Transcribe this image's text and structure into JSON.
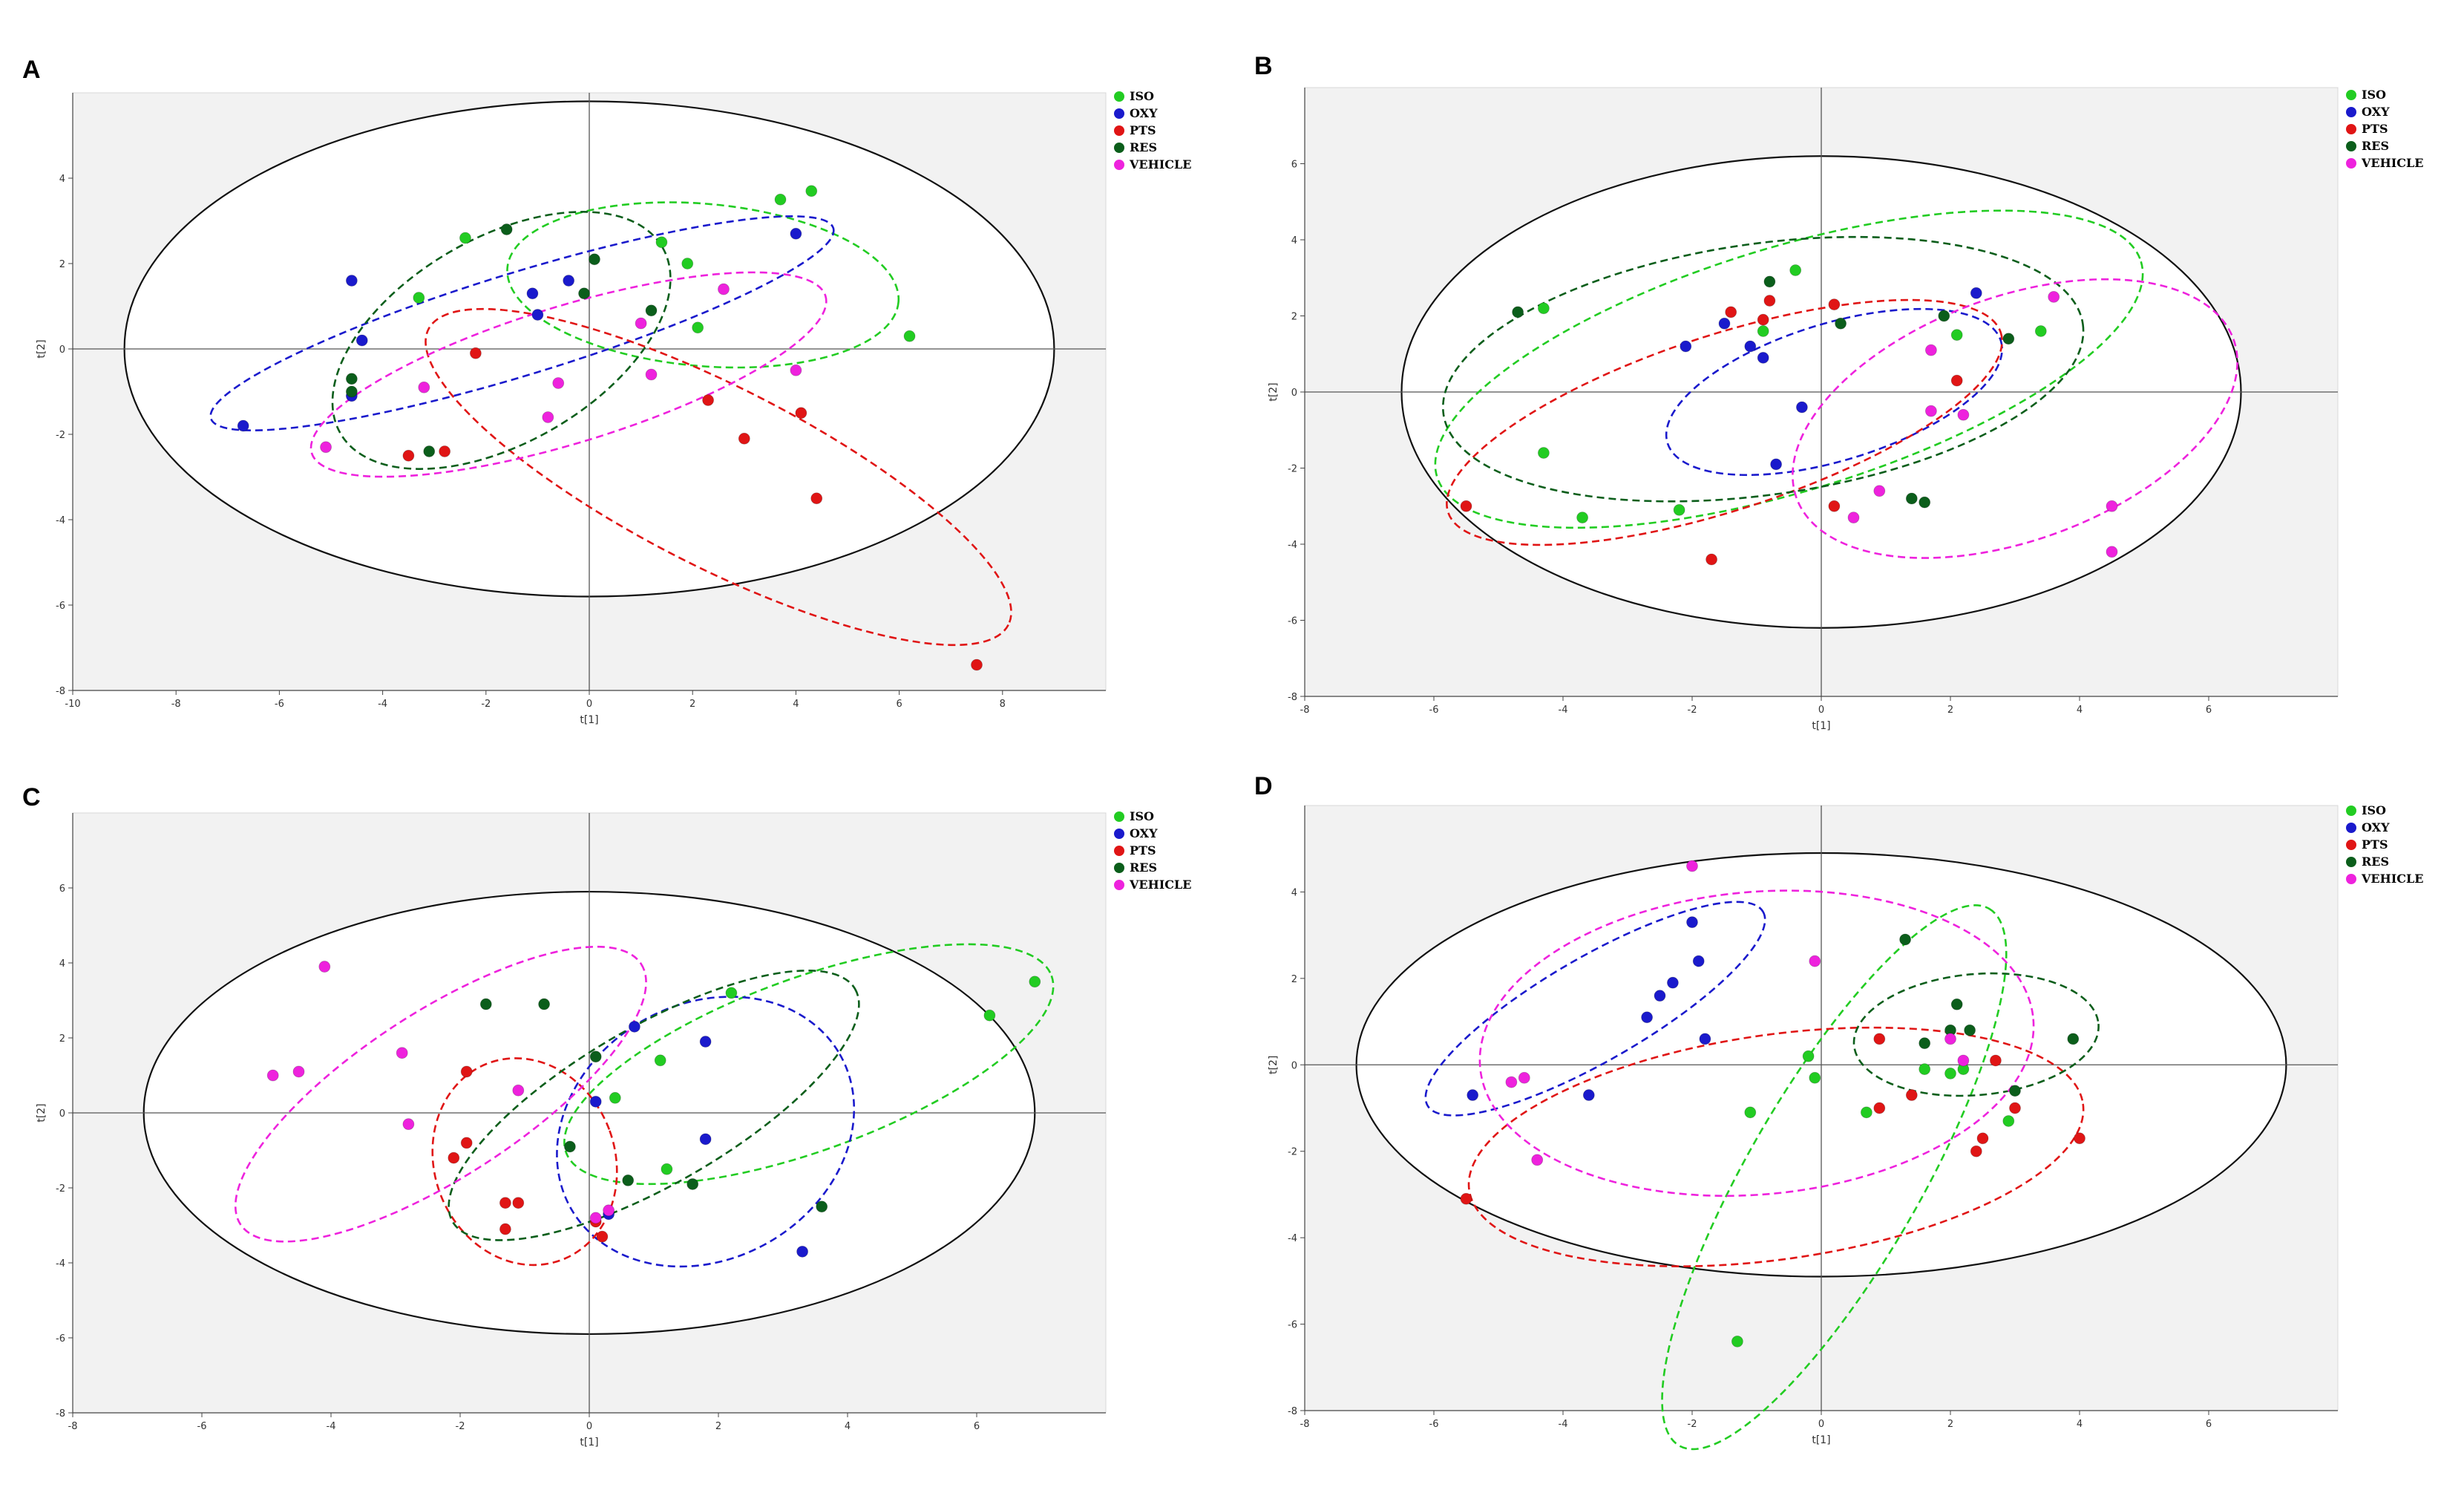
{
  "figure": {
    "legend": [
      {
        "name": "ISO",
        "color": "#22cc22"
      },
      {
        "name": "OXY",
        "color": "#1a1acc"
      },
      {
        "name": "PTS",
        "color": "#e01515"
      },
      {
        "name": "RES",
        "color": "#0b5e1b"
      },
      {
        "name": "VEHICLE",
        "color": "#ee22dd"
      }
    ]
  },
  "chart_data": [
    {
      "type": "scatter",
      "panel_label": "A",
      "xlabel": "t[1]",
      "ylabel": "t[2]",
      "xlim": [
        -10,
        10
      ],
      "ylim": [
        -8,
        6
      ],
      "xticks": [
        "-10",
        "-8",
        "-6",
        "-4",
        "-2",
        "0",
        "2",
        "4",
        "6",
        "8"
      ],
      "yticks": [
        "-8",
        "-6",
        "-4",
        "-2",
        "0",
        "2",
        "4"
      ],
      "hotelling_ellipse": {
        "cx": 0,
        "cy": 0,
        "rx": 9,
        "ry": 5.8
      },
      "series": [
        {
          "name": "ISO",
          "points": [
            [
              -3.3,
              1.2
            ],
            [
              -2.4,
              2.6
            ],
            [
              1.4,
              2.5
            ],
            [
              1.9,
              2.0
            ],
            [
              2.1,
              0.5
            ],
            [
              3.7,
              3.5
            ],
            [
              4.3,
              3.7
            ],
            [
              6.2,
              0.3
            ]
          ],
          "ellipse": {
            "cx": 2.2,
            "cy": 1.5,
            "rx": 3.8,
            "ry": 1.9,
            "angle": -5
          }
        },
        {
          "name": "OXY",
          "points": [
            [
              -6.7,
              -1.8
            ],
            [
              -4.6,
              1.6
            ],
            [
              -4.4,
              0.2
            ],
            [
              -4.6,
              -1.1
            ],
            [
              -1.1,
              1.3
            ],
            [
              -1.0,
              0.8
            ],
            [
              -0.4,
              1.6
            ],
            [
              4.0,
              2.7
            ]
          ],
          "ellipse": {
            "cx": -1.3,
            "cy": 0.6,
            "rx": 6.3,
            "ry": 1.2,
            "angle": 17
          }
        },
        {
          "name": "PTS",
          "points": [
            [
              -2.2,
              -0.1
            ],
            [
              -3.5,
              -2.5
            ],
            [
              -2.8,
              -2.4
            ],
            [
              2.3,
              -1.2
            ],
            [
              3.0,
              -2.1
            ],
            [
              4.1,
              -1.5
            ],
            [
              4.4,
              -3.5
            ],
            [
              7.5,
              -7.4
            ]
          ],
          "ellipse": {
            "cx": 2.5,
            "cy": -3.0,
            "rx": 6.3,
            "ry": 2.1,
            "angle": -27
          }
        },
        {
          "name": "RES",
          "points": [
            [
              -4.6,
              -0.7
            ],
            [
              -3.1,
              -2.4
            ],
            [
              -1.6,
              2.8
            ],
            [
              0.1,
              2.1
            ],
            [
              -0.1,
              1.3
            ],
            [
              1.2,
              0.9
            ],
            [
              -4.6,
              -1.0
            ]
          ],
          "ellipse": {
            "cx": -1.7,
            "cy": 0.2,
            "rx": 3.6,
            "ry": 2.4,
            "angle": 30
          }
        },
        {
          "name": "VEHICLE",
          "points": [
            [
              -5.1,
              -2.3
            ],
            [
              -3.2,
              -0.9
            ],
            [
              -0.6,
              -0.8
            ],
            [
              -0.8,
              -1.6
            ],
            [
              1.2,
              -0.6
            ],
            [
              1.0,
              0.6
            ],
            [
              2.6,
              1.4
            ],
            [
              4.0,
              -0.5
            ]
          ],
          "ellipse": {
            "cx": -0.4,
            "cy": -0.6,
            "rx": 5.2,
            "ry": 1.6,
            "angle": 17
          }
        }
      ]
    },
    {
      "type": "scatter",
      "panel_label": "B",
      "xlabel": "t[1]",
      "ylabel": "t[2]",
      "xlim": [
        -8,
        8
      ],
      "ylim": [
        -8,
        8
      ],
      "xticks": [
        "-8",
        "-6",
        "-4",
        "-2",
        "0",
        "2",
        "4",
        "6"
      ],
      "yticks": [
        "-8",
        "-6",
        "-4",
        "-2",
        "0",
        "2",
        "4",
        "6"
      ],
      "hotelling_ellipse": {
        "cx": 0,
        "cy": 0,
        "rx": 6.5,
        "ry": 6.2
      },
      "series": [
        {
          "name": "ISO",
          "points": [
            [
              -4.3,
              2.2
            ],
            [
              -4.3,
              -1.6
            ],
            [
              -3.7,
              -3.3
            ],
            [
              -2.2,
              -3.1
            ],
            [
              -0.9,
              1.6
            ],
            [
              -0.4,
              3.2
            ],
            [
              2.1,
              1.5
            ],
            [
              3.4,
              1.6
            ]
          ],
          "ellipse": {
            "cx": -0.5,
            "cy": 0.6,
            "rx": 5.7,
            "ry": 3.2,
            "angle": 17
          }
        },
        {
          "name": "OXY",
          "points": [
            [
              -2.1,
              1.2
            ],
            [
              -1.1,
              1.2
            ],
            [
              -1.5,
              1.8
            ],
            [
              -0.9,
              0.9
            ],
            [
              -0.3,
              -0.4
            ],
            [
              -0.7,
              -1.9
            ],
            [
              2.4,
              2.6
            ]
          ],
          "ellipse": {
            "cx": 0.2,
            "cy": 0.0,
            "rx": 2.7,
            "ry": 1.8,
            "angle": 17
          }
        },
        {
          "name": "PTS",
          "points": [
            [
              -5.5,
              -3.0
            ],
            [
              -1.7,
              -4.4
            ],
            [
              -1.4,
              2.1
            ],
            [
              -0.9,
              1.9
            ],
            [
              -0.8,
              2.4
            ],
            [
              0.2,
              2.3
            ],
            [
              0.2,
              -3.0
            ],
            [
              2.1,
              0.3
            ]
          ],
          "ellipse": {
            "cx": -1.5,
            "cy": -0.8,
            "rx": 4.5,
            "ry": 2.3,
            "angle": 18
          }
        },
        {
          "name": "RES",
          "points": [
            [
              -4.7,
              2.1
            ],
            [
              -0.8,
              2.9
            ],
            [
              0.3,
              1.8
            ],
            [
              1.4,
              -2.8
            ],
            [
              1.6,
              -2.9
            ],
            [
              1.9,
              2.0
            ],
            [
              2.9,
              1.4
            ]
          ],
          "ellipse": {
            "cx": -0.9,
            "cy": 0.6,
            "rx": 5.0,
            "ry": 3.3,
            "angle": 8
          }
        },
        {
          "name": "VEHICLE",
          "points": [
            [
              0.5,
              -3.3
            ],
            [
              0.9,
              -2.6
            ],
            [
              1.7,
              1.1
            ],
            [
              1.7,
              -0.5
            ],
            [
              2.2,
              -0.6
            ],
            [
              3.6,
              2.5
            ],
            [
              4.5,
              -3.0
            ],
            [
              4.5,
              -4.2
            ]
          ],
          "ellipse": {
            "cx": 3.0,
            "cy": -0.7,
            "rx": 3.6,
            "ry": 3.2,
            "angle": 20
          }
        }
      ]
    },
    {
      "type": "scatter",
      "panel_label": "C",
      "xlabel": "t[1]",
      "ylabel": "t[2]",
      "xlim": [
        -8,
        8
      ],
      "ylim": [
        -8,
        8
      ],
      "xticks": [
        "-8",
        "-6",
        "-4",
        "-2",
        "0",
        "2",
        "4",
        "6"
      ],
      "yticks": [
        "-8",
        "-6",
        "-4",
        "-2",
        "0",
        "2",
        "4",
        "6"
      ],
      "hotelling_ellipse": {
        "cx": 0,
        "cy": 0,
        "rx": 6.9,
        "ry": 5.9
      },
      "series": [
        {
          "name": "ISO",
          "points": [
            [
              0.4,
              0.4
            ],
            [
              1.1,
              1.4
            ],
            [
              1.2,
              -1.5
            ],
            [
              2.2,
              3.2
            ],
            [
              6.2,
              2.6
            ],
            [
              6.9,
              3.5
            ]
          ],
          "ellipse": {
            "cx": 3.4,
            "cy": 1.3,
            "rx": 4.0,
            "ry": 2.3,
            "angle": 20
          }
        },
        {
          "name": "OXY",
          "points": [
            [
              0.1,
              0.3
            ],
            [
              0.7,
              2.3
            ],
            [
              1.8,
              1.9
            ],
            [
              1.8,
              -0.7
            ],
            [
              3.3,
              -3.7
            ],
            [
              0.3,
              -2.7
            ]
          ],
          "ellipse": {
            "cx": 1.8,
            "cy": -0.5,
            "rx": 2.4,
            "ry": 3.4,
            "angle": 30
          }
        },
        {
          "name": "PTS",
          "points": [
            [
              -2.1,
              -1.2
            ],
            [
              -1.9,
              1.1
            ],
            [
              -1.9,
              -0.8
            ],
            [
              -1.3,
              -2.4
            ],
            [
              -1.1,
              -2.4
            ],
            [
              -1.3,
              -3.1
            ],
            [
              0.1,
              -2.9
            ],
            [
              0.2,
              -3.3
            ]
          ],
          "ellipse": {
            "cx": -1.0,
            "cy": -1.3,
            "rx": 1.4,
            "ry": 2.8,
            "angle": 20
          }
        },
        {
          "name": "RES",
          "points": [
            [
              -1.6,
              2.9
            ],
            [
              -0.7,
              2.9
            ],
            [
              0.1,
              1.5
            ],
            [
              -0.3,
              -0.9
            ],
            [
              0.6,
              -1.8
            ],
            [
              1.6,
              -1.9
            ],
            [
              3.6,
              -2.5
            ]
          ],
          "ellipse": {
            "cx": 1.0,
            "cy": 0.2,
            "rx": 3.6,
            "ry": 2.1,
            "angle": 30
          }
        },
        {
          "name": "VEHICLE",
          "points": [
            [
              -4.9,
              1.0
            ],
            [
              -4.5,
              1.1
            ],
            [
              -4.1,
              3.9
            ],
            [
              -2.9,
              1.6
            ],
            [
              -2.8,
              -0.3
            ],
            [
              -1.1,
              0.6
            ],
            [
              0.1,
              -2.8
            ],
            [
              0.3,
              -2.6
            ]
          ],
          "ellipse": {
            "cx": -2.3,
            "cy": 0.5,
            "rx": 3.7,
            "ry": 2.2,
            "angle": 33
          }
        }
      ]
    },
    {
      "type": "scatter",
      "panel_label": "D",
      "xlabel": "t[1]",
      "ylabel": "t[2]",
      "xlim": [
        -8,
        8
      ],
      "ylim": [
        -8,
        6
      ],
      "xticks": [
        "-8",
        "-6",
        "-4",
        "-2",
        "0",
        "2",
        "4",
        "6"
      ],
      "yticks": [
        "-8",
        "-6",
        "-4",
        "-2",
        "0",
        "2",
        "4"
      ],
      "hotelling_ellipse": {
        "cx": 0,
        "cy": 0,
        "rx": 7.2,
        "ry": 4.9
      },
      "series": [
        {
          "name": "ISO",
          "points": [
            [
              -1.1,
              -1.1
            ],
            [
              -0.2,
              0.2
            ],
            [
              -0.1,
              -0.3
            ],
            [
              0.7,
              -1.1
            ],
            [
              1.6,
              -0.1
            ],
            [
              2.0,
              -0.2
            ],
            [
              2.2,
              -0.1
            ],
            [
              2.9,
              -1.3
            ],
            [
              -1.3,
              -6.4
            ]
          ],
          "ellipse": {
            "cx": 0.2,
            "cy": -2.6,
            "rx": 4.8,
            "ry": 2.0,
            "angle": 60
          }
        },
        {
          "name": "OXY",
          "points": [
            [
              -5.4,
              -0.7
            ],
            [
              -3.6,
              -0.7
            ],
            [
              -2.7,
              1.1
            ],
            [
              -2.5,
              1.6
            ],
            [
              -2.3,
              1.9
            ],
            [
              -2.0,
              3.3
            ],
            [
              -1.9,
              2.4
            ],
            [
              -1.8,
              0.6
            ]
          ],
          "ellipse": {
            "cx": -3.5,
            "cy": 1.3,
            "rx": 3.0,
            "ry": 1.2,
            "angle": 30
          }
        },
        {
          "name": "PTS",
          "points": [
            [
              -5.5,
              -3.1
            ],
            [
              0.9,
              0.6
            ],
            [
              0.9,
              -1.0
            ],
            [
              1.4,
              -0.7
            ],
            [
              2.4,
              -2.0
            ],
            [
              2.5,
              -1.7
            ],
            [
              2.7,
              0.1
            ],
            [
              3.0,
              -1.0
            ],
            [
              4.0,
              -1.7
            ]
          ],
          "ellipse": {
            "cx": -0.7,
            "cy": -1.9,
            "rx": 4.8,
            "ry": 2.6,
            "angle": 8
          }
        },
        {
          "name": "RES",
          "points": [
            [
              1.3,
              2.9
            ],
            [
              1.6,
              0.5
            ],
            [
              2.0,
              0.8
            ],
            [
              2.1,
              1.4
            ],
            [
              2.3,
              0.8
            ],
            [
              3.0,
              -0.6
            ],
            [
              3.9,
              0.6
            ]
          ],
          "ellipse": {
            "cx": 2.4,
            "cy": 0.7,
            "rx": 1.9,
            "ry": 1.4,
            "angle": 5
          }
        },
        {
          "name": "VEHICLE",
          "points": [
            [
              -4.8,
              -0.4
            ],
            [
              -4.6,
              -0.3
            ],
            [
              -4.4,
              -2.2
            ],
            [
              -2.0,
              4.6
            ],
            [
              -0.1,
              2.4
            ],
            [
              2.0,
              0.6
            ],
            [
              2.2,
              0.1
            ]
          ],
          "ellipse": {
            "cx": -1.0,
            "cy": 0.5,
            "rx": 4.3,
            "ry": 3.5,
            "angle": 5
          }
        }
      ]
    }
  ]
}
